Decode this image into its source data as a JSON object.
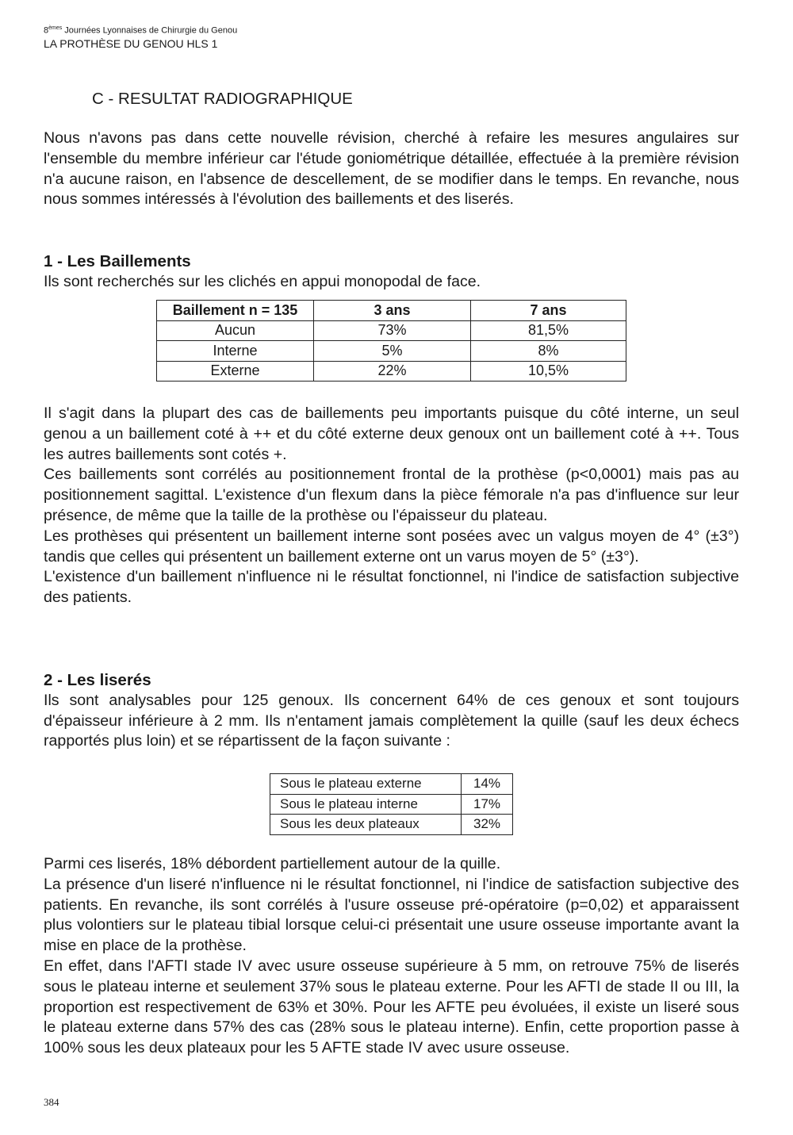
{
  "header": {
    "line1_num": "8",
    "line1_sup": "èmes",
    "line1_rest": " Journées Lyonnaises de Chirurgie du Genou",
    "line2": "LA PROTHÈSE DU GENOU HLS 1"
  },
  "section_title": "C - RESULTAT RADIOGRAPHIQUE",
  "intro": "Nous n'avons pas dans cette nouvelle révision, cherché à refaire les mesures angulaires sur l'ensemble du membre inférieur car l'étude goniométrique détaillée, effectuée à la première révision n'a aucune raison, en l'absence de descellement, de se modifier dans le temps. En revanche, nous nous sommes intéressés à l'évolution des baillements et des liserés.",
  "s1": {
    "title": "1 - Les Baillements",
    "lead": "Ils sont recherchés sur les clichés en appui monopodal de face.",
    "table": {
      "headers": [
        "Baillement  n = 135",
        "3 ans",
        "7 ans"
      ],
      "rows": [
        [
          "Aucun",
          "73%",
          "81,5%"
        ],
        [
          "Interne",
          "5%",
          "8%"
        ],
        [
          "Externe",
          "22%",
          "10,5%"
        ]
      ]
    },
    "paragraphs": [
      "Il s'agit dans la plupart des cas de baillements peu importants puisque du côté interne, un seul genou a un baillement coté à ++ et du côté externe deux genoux ont un baillement coté à ++. Tous les autres baillements sont cotés +.",
      "Ces baillements sont corrélés au positionnement frontal de la prothèse (p<0,0001) mais pas au positionnement sagittal. L'existence d'un flexum dans la pièce fémorale n'a pas d'influence sur leur présence, de même que la taille de la prothèse ou l'épaisseur du plateau.",
      "Les prothèses qui présentent un baillement interne sont posées avec un valgus moyen de 4° (±3°) tandis que celles qui présentent un baillement externe ont un varus moyen de 5° (±3°).",
      "L'existence d'un baillement n'influence ni le résultat fonctionnel, ni l'indice de satisfaction subjective des patients."
    ]
  },
  "s2": {
    "title": "2 - Les liserés",
    "lead": "Ils sont analysables pour 125 genoux. Ils concernent 64% de ces genoux et sont toujours d'épaisseur inférieure à 2 mm. Ils n'entament jamais complètement la quille (sauf les deux échecs rapportés plus loin) et se répartissent de la façon suivante :",
    "table": {
      "rows": [
        [
          "Sous le plateau externe",
          "14%"
        ],
        [
          "Sous le plateau interne",
          "17%"
        ],
        [
          "Sous les deux plateaux",
          "32%"
        ]
      ]
    },
    "paragraphs": [
      "Parmi ces liserés, 18% débordent partiellement autour de la quille.",
      "La présence d'un liseré n'influence ni le résultat fonctionnel, ni l'indice de satisfaction subjective des patients. En revanche, ils sont corrélés à l'usure osseuse pré-opératoire (p=0,02) et apparaissent plus volontiers sur le plateau tibial lorsque celui-ci présentait une usure osseuse importante avant la mise en place de la prothèse.",
      "En effet, dans l'AFTI stade IV avec usure osseuse supérieure à 5 mm, on retrouve 75% de liserés sous le plateau interne et seulement 37% sous le plateau externe. Pour les AFTI de stade II ou III, la proportion est respectivement de 63% et 30%. Pour les AFTE peu évoluées, il existe un liseré sous le plateau externe dans 57% des cas (28% sous le plateau interne). Enfin, cette proportion passe à 100% sous les deux plateaux pour les 5 AFTE stade IV avec usure osseuse."
    ]
  },
  "page_number": "384"
}
